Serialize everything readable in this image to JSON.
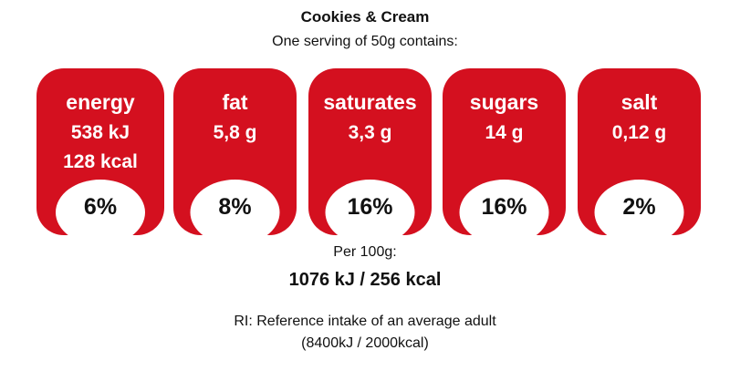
{
  "header": {
    "title": "Cookies & Cream",
    "subtitle": "One serving of 50g contains:"
  },
  "nutrients": [
    {
      "name": "energy",
      "amounts": [
        "538 kJ",
        "128 kcal"
      ],
      "percent": "6%"
    },
    {
      "name": "fat",
      "amounts": [
        "5,8 g"
      ],
      "percent": "8%"
    },
    {
      "name": "saturates",
      "amounts": [
        "3,3 g"
      ],
      "percent": "16%"
    },
    {
      "name": "sugars",
      "amounts": [
        "14 g"
      ],
      "percent": "16%"
    },
    {
      "name": "salt",
      "amounts": [
        "0,12 g"
      ],
      "percent": "2%"
    }
  ],
  "footer": {
    "per_label": "Per 100g:",
    "per_value": "1076 kJ / 256 kcal",
    "ri_note": "RI: Reference intake of an average adult",
    "ri_values": "(8400kJ / 2000kcal)"
  }
}
